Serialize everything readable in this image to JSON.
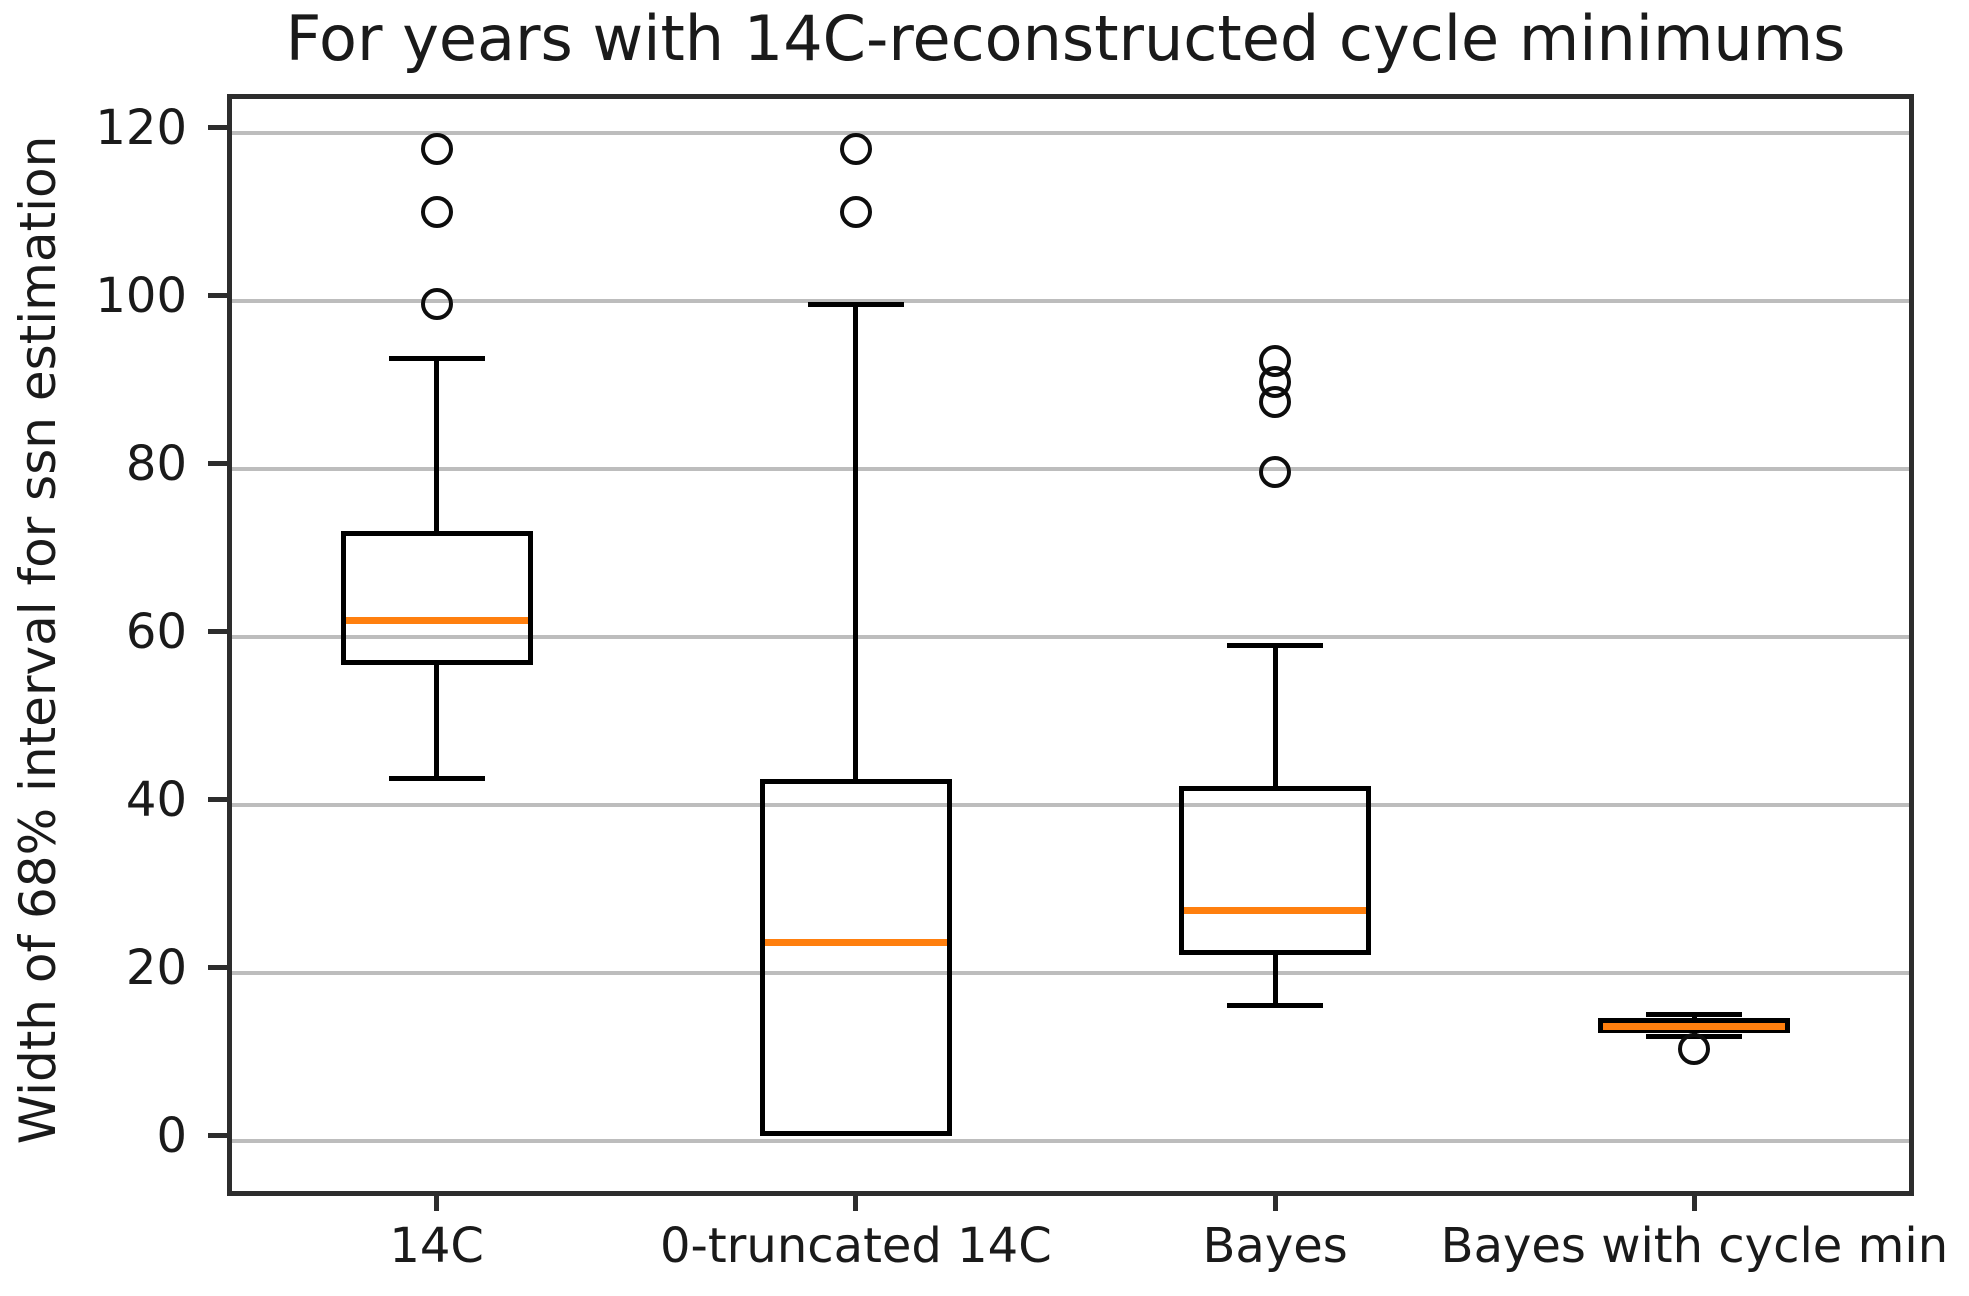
{
  "chart_data": {
    "type": "box",
    "title": "For years with 14C-reconstructed cycle minimums",
    "xlabel": "",
    "ylabel": "Width of 68% interval for ssn estimation",
    "categories": [
      "14C",
      "0-truncated 14C",
      "Bayes",
      "Bayes with cycle min"
    ],
    "yticks": [
      0,
      20,
      40,
      60,
      80,
      100,
      120
    ],
    "ylim": [
      -6,
      124
    ],
    "grid": "horizontal-only",
    "legend": "none",
    "series": [
      {
        "name": "14C",
        "whislo": 42.5,
        "q1": 56,
        "med": 61.3,
        "q3": 72,
        "whishi": 92.5,
        "fliers": [
          99,
          110,
          117.5
        ]
      },
      {
        "name": "0-truncated 14C",
        "whislo": 0,
        "q1": 0,
        "med": 23,
        "q3": 42.5,
        "whishi": 99,
        "fliers": [
          110,
          117.5
        ]
      },
      {
        "name": "Bayes",
        "whislo": 15.5,
        "q1": 21.5,
        "med": 26.8,
        "q3": 41.6,
        "whishi": 58.3,
        "fliers": [
          79,
          87.3,
          89.7,
          92.2
        ]
      },
      {
        "name": "Bayes with cycle min",
        "whislo": 11.8,
        "q1": 12.2,
        "med": 13,
        "q3": 14,
        "whishi": 14.4,
        "fliers": [
          10.3
        ]
      }
    ],
    "colors": {
      "median": "#ff7f0e",
      "box_edge": "#000000",
      "grid": "#bdbdbd",
      "spine": "#2d2d2d",
      "text": "#1a1a1a"
    }
  }
}
